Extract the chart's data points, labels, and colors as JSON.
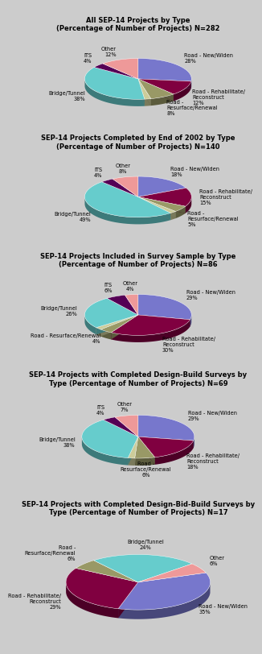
{
  "charts": [
    {
      "title": "All SEP-14 Projects by Type\n(Percentage of Number of Projects) N=282",
      "slices": [
        {
          "label": "Road - New/Widen\n28%",
          "value": 28,
          "color": "#7777cc",
          "label_pos": "right"
        },
        {
          "label": "Road - Rehabilitate/\nReconstruct\n12%",
          "value": 12,
          "color": "#800040",
          "label_pos": "right"
        },
        {
          "label": "Road -\nResurface/Renewal\n8%",
          "value": 8,
          "color": "#999966",
          "label_pos": "bottom"
        },
        {
          "label": "",
          "value": 2,
          "color": "#cccc99",
          "label_pos": "none"
        },
        {
          "label": "Bridge/Tunnel\n38%",
          "value": 38,
          "color": "#66cccc",
          "label_pos": "left"
        },
        {
          "label": "ITS\n4%",
          "value": 4,
          "color": "#550055",
          "label_pos": "left"
        },
        {
          "label": "Other\n12%",
          "value": 12,
          "color": "#ee9999",
          "label_pos": "top"
        }
      ],
      "startangle": 90
    },
    {
      "title": "SEP-14 Projects Completed by End of 2002 by Type\n(Percentage of Number of Projects) N=140",
      "slices": [
        {
          "label": "Road - New/Widen\n18%",
          "value": 18,
          "color": "#7777cc",
          "label_pos": "right"
        },
        {
          "label": "Road - Rehabilitate/\nReconstruct\n15%",
          "value": 15,
          "color": "#800040",
          "label_pos": "right"
        },
        {
          "label": "Road -\nResurface/Renewal\n5%",
          "value": 5,
          "color": "#999966",
          "label_pos": "right"
        },
        {
          "label": "",
          "value": 2,
          "color": "#cccc99",
          "label_pos": "none"
        },
        {
          "label": "Bridge/Tunnel\n49%",
          "value": 49,
          "color": "#66cccc",
          "label_pos": "left"
        },
        {
          "label": "ITS\n4%",
          "value": 4,
          "color": "#550055",
          "label_pos": "left"
        },
        {
          "label": "Other\n8%",
          "value": 8,
          "color": "#ee9999",
          "label_pos": "top"
        }
      ],
      "startangle": 90
    },
    {
      "title": "SEP-14 Projects Included in Survey Sample by Type\n(Percentage of Number of Projects) N=86",
      "slices": [
        {
          "label": "Road - New/Widen\n29%",
          "value": 29,
          "color": "#7777cc",
          "label_pos": "right"
        },
        {
          "label": "Road - Rehabilitate/\nReconstruct\n30%",
          "value": 30,
          "color": "#800040",
          "label_pos": "right"
        },
        {
          "label": "Road - Resurface/Renewal\n4%",
          "value": 4,
          "color": "#999966",
          "label_pos": "bottom"
        },
        {
          "label": "",
          "value": 2,
          "color": "#cccc99",
          "label_pos": "none"
        },
        {
          "label": "Bridge/Tunnel\n26%",
          "value": 26,
          "color": "#66cccc",
          "label_pos": "left"
        },
        {
          "label": "ITS\n6%",
          "value": 6,
          "color": "#550055",
          "label_pos": "left"
        },
        {
          "label": "Other\n4%",
          "value": 4,
          "color": "#ee9999",
          "label_pos": "top"
        }
      ],
      "startangle": 90
    },
    {
      "title": "SEP-14 Projects with Completed Design-Build Surveys by\nType (Percentage of Number of Projects) N=69",
      "slices": [
        {
          "label": "Road - New/Widen\n29%",
          "value": 29,
          "color": "#7777cc",
          "label_pos": "right"
        },
        {
          "label": "Road - Rehabilitate/\nReconstruct\n18%",
          "value": 18,
          "color": "#800040",
          "label_pos": "right"
        },
        {
          "label": "Road -\nResurface/Renewal\n6%",
          "value": 6,
          "color": "#999966",
          "label_pos": "bottom"
        },
        {
          "label": "",
          "value": 2,
          "color": "#cccc99",
          "label_pos": "none"
        },
        {
          "label": "Bridge/Tunnel\n38%",
          "value": 38,
          "color": "#66cccc",
          "label_pos": "left"
        },
        {
          "label": "ITS\n4%",
          "value": 4,
          "color": "#550055",
          "label_pos": "left"
        },
        {
          "label": "Other\n7%",
          "value": 7,
          "color": "#ee9999",
          "label_pos": "top"
        }
      ],
      "startangle": 90
    },
    {
      "title": "SEP-14 Projects with Completed Design-Bid-Build Surveys by\nType (Percentage of Number of Projects) N=17",
      "slices": [
        {
          "label": "Road - New/Widen\n35%",
          "value": 35,
          "color": "#7777cc",
          "label_pos": "right"
        },
        {
          "label": "Road - Rehabilitate/\nReconstruct\n29%",
          "value": 29,
          "color": "#800040",
          "label_pos": "bottom"
        },
        {
          "label": "Road -\nResurface/Renewal\n6%",
          "value": 6,
          "color": "#999966",
          "label_pos": "left"
        },
        {
          "label": "Bridge/Tunnel\n24%",
          "value": 24,
          "color": "#66cccc",
          "label_pos": "left"
        },
        {
          "label": "Other\n6%",
          "value": 6,
          "color": "#ee9999",
          "label_pos": "top"
        }
      ],
      "startangle": 20
    }
  ],
  "bg_color": "#cccccc",
  "title_fontsize": 6.0,
  "label_fontsize": 4.8
}
